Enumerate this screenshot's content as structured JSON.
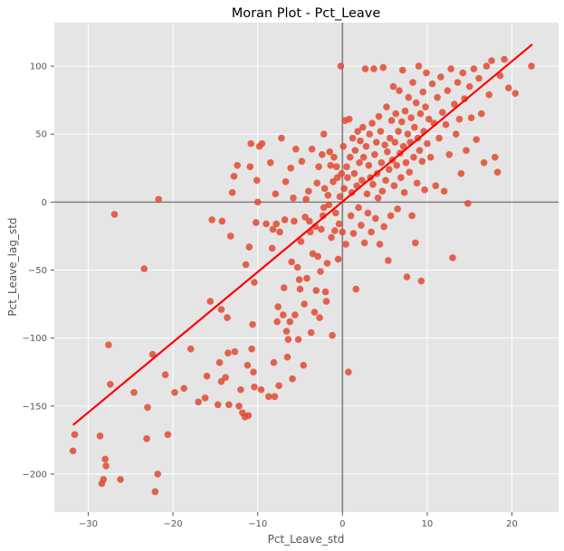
{
  "chart_data": {
    "type": "scatter",
    "title": "Moran Plot - Pct_Leave",
    "xlabel": "Pct_Leave_std",
    "ylabel": "Pct_Leave_lag_std",
    "xlim": [
      -34,
      25.5
    ],
    "ylim": [
      -228,
      132
    ],
    "xticks": [
      -30,
      -20,
      -10,
      0,
      10,
      20
    ],
    "yticks": [
      -200,
      -150,
      -100,
      -50,
      0,
      50,
      100
    ],
    "xtick_labels": [
      "−30",
      "−20",
      "−10",
      "0",
      "10",
      "20"
    ],
    "ytick_labels": [
      "−200",
      "−150",
      "−100",
      "−50",
      "0",
      "50",
      "100"
    ],
    "grid": true,
    "reference_lines": {
      "x": 0,
      "y": 0,
      "color": "#808080"
    },
    "regression_line": {
      "x": [
        -31.8,
        22.4
      ],
      "y": [
        -164,
        116
      ],
      "color": "#ff0000"
    },
    "colors": {
      "points": "#e24a33",
      "background": "#e5e5e5",
      "grid": "#ffffff"
    },
    "points": [
      {
        "x": -31.8,
        "y": -183
      },
      {
        "x": -31.6,
        "y": -171
      },
      {
        "x": -28.6,
        "y": -172
      },
      {
        "x": -28.4,
        "y": -207
      },
      {
        "x": -28.2,
        "y": -204
      },
      {
        "x": -28.0,
        "y": -189
      },
      {
        "x": -27.9,
        "y": -194
      },
      {
        "x": -27.6,
        "y": -105
      },
      {
        "x": -27.4,
        "y": -134
      },
      {
        "x": -26.9,
        "y": -9
      },
      {
        "x": -26.2,
        "y": -204
      },
      {
        "x": -24.6,
        "y": -140
      },
      {
        "x": -23.4,
        "y": -49
      },
      {
        "x": -23.1,
        "y": -174
      },
      {
        "x": -23.0,
        "y": -151
      },
      {
        "x": -22.4,
        "y": -112
      },
      {
        "x": -22.1,
        "y": -213
      },
      {
        "x": -21.8,
        "y": -200
      },
      {
        "x": -21.7,
        "y": 2
      },
      {
        "x": -20.9,
        "y": -127
      },
      {
        "x": -20.6,
        "y": -171
      },
      {
        "x": -19.8,
        "y": -140
      },
      {
        "x": -18.7,
        "y": -137
      },
      {
        "x": -17.9,
        "y": -108
      },
      {
        "x": -17.0,
        "y": -147
      },
      {
        "x": -16.2,
        "y": -144
      },
      {
        "x": -16.0,
        "y": -128
      },
      {
        "x": -15.6,
        "y": -73
      },
      {
        "x": -15.4,
        "y": -13
      },
      {
        "x": -14.7,
        "y": -149
      },
      {
        "x": -14.5,
        "y": -118
      },
      {
        "x": -14.3,
        "y": -132
      },
      {
        "x": -14.3,
        "y": -79
      },
      {
        "x": -14.2,
        "y": -14
      },
      {
        "x": -13.8,
        "y": -129
      },
      {
        "x": -13.6,
        "y": -85
      },
      {
        "x": -13.5,
        "y": -111
      },
      {
        "x": -13.4,
        "y": -149
      },
      {
        "x": -13.2,
        "y": -25
      },
      {
        "x": -13.0,
        "y": 7
      },
      {
        "x": -12.8,
        "y": 19
      },
      {
        "x": -12.7,
        "y": -110
      },
      {
        "x": -12.4,
        "y": 27
      },
      {
        "x": -12.2,
        "y": -150
      },
      {
        "x": -12.0,
        "y": -138
      },
      {
        "x": -11.8,
        "y": -155
      },
      {
        "x": -11.5,
        "y": -158
      },
      {
        "x": -11.4,
        "y": -46
      },
      {
        "x": -11.2,
        "y": -120
      },
      {
        "x": -11.1,
        "y": -157
      },
      {
        "x": -11.0,
        "y": -33
      },
      {
        "x": -10.9,
        "y": 26
      },
      {
        "x": -10.8,
        "y": 43
      },
      {
        "x": -10.7,
        "y": -108
      },
      {
        "x": -10.6,
        "y": -90
      },
      {
        "x": -10.5,
        "y": -125
      },
      {
        "x": -10.4,
        "y": -59
      },
      {
        "x": -10.4,
        "y": -136
      },
      {
        "x": -10.2,
        "y": -15
      },
      {
        "x": -10.1,
        "y": 16
      },
      {
        "x": -10.0,
        "y": 0
      },
      {
        "x": -9.8,
        "y": 41
      },
      {
        "x": -9.6,
        "y": -138
      },
      {
        "x": -9.5,
        "y": 43
      },
      {
        "x": -9.0,
        "y": -16
      },
      {
        "x": -8.7,
        "y": -143
      },
      {
        "x": -8.5,
        "y": 29
      },
      {
        "x": -8.3,
        "y": -34
      },
      {
        "x": -8.2,
        "y": -20
      },
      {
        "x": -8.1,
        "y": -118
      },
      {
        "x": -8.0,
        "y": -143
      },
      {
        "x": -7.9,
        "y": 6
      },
      {
        "x": -7.8,
        "y": -16
      },
      {
        "x": -7.7,
        "y": -88
      },
      {
        "x": -7.6,
        "y": -77
      },
      {
        "x": -7.5,
        "y": -135
      },
      {
        "x": -7.4,
        "y": -22
      },
      {
        "x": -7.2,
        "y": 47
      },
      {
        "x": -7.0,
        "y": -83
      },
      {
        "x": -6.9,
        "y": -63
      },
      {
        "x": -6.8,
        "y": -13
      },
      {
        "x": -6.7,
        "y": 15
      },
      {
        "x": -6.6,
        "y": -95
      },
      {
        "x": -6.5,
        "y": -114
      },
      {
        "x": -6.4,
        "y": -101
      },
      {
        "x": -6.2,
        "y": -88
      },
      {
        "x": -6.1,
        "y": 25
      },
      {
        "x": -6.0,
        "y": -44
      },
      {
        "x": -5.9,
        "y": -130
      },
      {
        "x": -5.8,
        "y": 3
      },
      {
        "x": -5.7,
        "y": -14
      },
      {
        "x": -5.6,
        "y": -83
      },
      {
        "x": -5.5,
        "y": 39
      },
      {
        "x": -5.3,
        "y": -48
      },
      {
        "x": -5.2,
        "y": -101
      },
      {
        "x": -5.1,
        "y": -57
      },
      {
        "x": -5.0,
        "y": -64
      },
      {
        "x": -4.9,
        "y": -29
      },
      {
        "x": -4.8,
        "y": 30
      },
      {
        "x": -4.6,
        "y": -120
      },
      {
        "x": -4.5,
        "y": -75
      },
      {
        "x": -4.4,
        "y": -11
      },
      {
        "x": -4.3,
        "y": 2
      },
      {
        "x": -4.2,
        "y": -56
      },
      {
        "x": -4.0,
        "y": 8
      },
      {
        "x": -3.9,
        "y": -14
      },
      {
        "x": -3.8,
        "y": -22
      },
      {
        "x": -3.7,
        "y": -96
      },
      {
        "x": -3.6,
        "y": 39
      },
      {
        "x": -3.5,
        "y": -38
      },
      {
        "x": -3.3,
        "y": -81
      },
      {
        "x": -3.2,
        "y": -18
      },
      {
        "x": -3.1,
        "y": -65
      },
      {
        "x": -3.0,
        "y": 14
      },
      {
        "x": -2.9,
        "y": -40
      },
      {
        "x": -2.8,
        "y": 26
      },
      {
        "x": -2.7,
        "y": -85
      },
      {
        "x": -2.6,
        "y": -51
      },
      {
        "x": -2.5,
        "y": -20
      },
      {
        "x": -2.4,
        "y": 35
      },
      {
        "x": -2.3,
        "y": -10
      },
      {
        "x": -2.2,
        "y": 50
      },
      {
        "x": -2.2,
        "y": -4
      },
      {
        "x": -2.1,
        "y": 10
      },
      {
        "x": -2.0,
        "y": -66
      },
      {
        "x": -1.9,
        "y": -73
      },
      {
        "x": -1.8,
        "y": -45
      },
      {
        "x": -1.7,
        "y": 5
      },
      {
        "x": -1.6,
        "y": -2
      },
      {
        "x": -1.5,
        "y": 37
      },
      {
        "x": -1.4,
        "y": 27
      },
      {
        "x": -1.3,
        "y": -26
      },
      {
        "x": -1.2,
        "y": -98
      },
      {
        "x": -1.1,
        "y": 15
      },
      {
        "x": -1.0,
        "y": 33
      },
      {
        "x": -0.9,
        "y": -21
      },
      {
        "x": -0.8,
        "y": -8
      },
      {
        "x": -0.7,
        "y": 26
      },
      {
        "x": -0.6,
        "y": 18
      },
      {
        "x": -0.5,
        "y": -42
      },
      {
        "x": -0.4,
        "y": -16
      },
      {
        "x": -0.3,
        "y": 4
      },
      {
        "x": -0.2,
        "y": 100
      },
      {
        "x": -0.1,
        "y": 21
      },
      {
        "x": 0.0,
        "y": -22
      },
      {
        "x": 0.1,
        "y": 41
      },
      {
        "x": 0.2,
        "y": 10
      },
      {
        "x": 0.3,
        "y": 60
      },
      {
        "x": 0.4,
        "y": -31
      },
      {
        "x": 0.5,
        "y": 26
      },
      {
        "x": 0.6,
        "y": 18
      },
      {
        "x": 0.7,
        "y": -125
      },
      {
        "x": 0.8,
        "y": 61
      },
      {
        "x": 0.9,
        "y": 33
      },
      {
        "x": 1.0,
        "y": -10
      },
      {
        "x": 1.1,
        "y": 7
      },
      {
        "x": 1.2,
        "y": 47
      },
      {
        "x": 1.3,
        "y": -23
      },
      {
        "x": 1.4,
        "y": 21
      },
      {
        "x": 1.5,
        "y": 38
      },
      {
        "x": 1.6,
        "y": -64
      },
      {
        "x": 1.7,
        "y": 12
      },
      {
        "x": 1.8,
        "y": 52
      },
      {
        "x": 1.9,
        "y": -4
      },
      {
        "x": 2.0,
        "y": 29
      },
      {
        "x": 2.1,
        "y": 45
      },
      {
        "x": 2.2,
        "y": -17
      },
      {
        "x": 2.3,
        "y": 16
      },
      {
        "x": 2.4,
        "y": 55
      },
      {
        "x": 2.5,
        "y": 33
      },
      {
        "x": 2.6,
        "y": -30
      },
      {
        "x": 2.7,
        "y": 98
      },
      {
        "x": 2.8,
        "y": 41
      },
      {
        "x": 2.9,
        "y": 6
      },
      {
        "x": 3.0,
        "y": -8
      },
      {
        "x": 3.1,
        "y": 27
      },
      {
        "x": 3.2,
        "y": 50
      },
      {
        "x": 3.3,
        "y": 18
      },
      {
        "x": 3.4,
        "y": -22
      },
      {
        "x": 3.5,
        "y": 58
      },
      {
        "x": 3.6,
        "y": 13
      },
      {
        "x": 3.7,
        "y": 98
      },
      {
        "x": 3.8,
        "y": 35
      },
      {
        "x": 3.9,
        "y": -12
      },
      {
        "x": 4.0,
        "y": 44
      },
      {
        "x": 4.1,
        "y": 21
      },
      {
        "x": 4.2,
        "y": 3
      },
      {
        "x": 4.3,
        "y": 63
      },
      {
        "x": 4.4,
        "y": -31
      },
      {
        "x": 4.5,
        "y": 52
      },
      {
        "x": 4.6,
        "y": 29
      },
      {
        "x": 4.7,
        "y": 8
      },
      {
        "x": 4.8,
        "y": 99
      },
      {
        "x": 4.9,
        "y": -18
      },
      {
        "x": 5.0,
        "y": 42
      },
      {
        "x": 5.1,
        "y": 16
      },
      {
        "x": 5.2,
        "y": 70
      },
      {
        "x": 5.3,
        "y": 37
      },
      {
        "x": 5.4,
        "y": -43
      },
      {
        "x": 5.5,
        "y": 24
      },
      {
        "x": 5.6,
        "y": 47
      },
      {
        "x": 5.7,
        "y": -10
      },
      {
        "x": 5.8,
        "y": 60
      },
      {
        "x": 5.9,
        "y": 31
      },
      {
        "x": 6.0,
        "y": 85
      },
      {
        "x": 6.1,
        "y": 12
      },
      {
        "x": 6.2,
        "y": 44
      },
      {
        "x": 6.3,
        "y": 65
      },
      {
        "x": 6.4,
        "y": 27
      },
      {
        "x": 6.5,
        "y": -5
      },
      {
        "x": 6.6,
        "y": 52
      },
      {
        "x": 6.7,
        "y": 82
      },
      {
        "x": 6.8,
        "y": 36
      },
      {
        "x": 6.9,
        "y": 18
      },
      {
        "x": 7.0,
        "y": 59
      },
      {
        "x": 7.1,
        "y": 97
      },
      {
        "x": 7.2,
        "y": 41
      },
      {
        "x": 7.3,
        "y": 7
      },
      {
        "x": 7.4,
        "y": 67
      },
      {
        "x": 7.5,
        "y": 29
      },
      {
        "x": 7.6,
        "y": -55
      },
      {
        "x": 7.7,
        "y": 50
      },
      {
        "x": 7.8,
        "y": 77
      },
      {
        "x": 7.9,
        "y": 22
      },
      {
        "x": 8.0,
        "y": 44
      },
      {
        "x": 8.1,
        "y": 62
      },
      {
        "x": 8.2,
        "y": -10
      },
      {
        "x": 8.3,
        "y": 88
      },
      {
        "x": 8.4,
        "y": 33
      },
      {
        "x": 8.5,
        "y": 55
      },
      {
        "x": 8.6,
        "y": -30
      },
      {
        "x": 8.7,
        "y": 73
      },
      {
        "x": 8.8,
        "y": 14
      },
      {
        "x": 8.9,
        "y": 47
      },
      {
        "x": 9.0,
        "y": 100
      },
      {
        "x": 9.1,
        "y": 38
      },
      {
        "x": 9.2,
        "y": 65
      },
      {
        "x": 9.3,
        "y": -58
      },
      {
        "x": 9.4,
        "y": 30
      },
      {
        "x": 9.5,
        "y": 81
      },
      {
        "x": 9.6,
        "y": 52
      },
      {
        "x": 9.7,
        "y": 9
      },
      {
        "x": 9.8,
        "y": 70
      },
      {
        "x": 9.9,
        "y": 95
      },
      {
        "x": 10.0,
        "y": 43
      },
      {
        "x": 10.2,
        "y": 61
      },
      {
        "x": 10.4,
        "y": 33
      },
      {
        "x": 10.6,
        "y": 87
      },
      {
        "x": 10.8,
        "y": 58
      },
      {
        "x": 11.0,
        "y": 12
      },
      {
        "x": 11.2,
        "y": 77
      },
      {
        "x": 11.4,
        "y": 47
      },
      {
        "x": 11.6,
        "y": 92
      },
      {
        "x": 11.8,
        "y": 66
      },
      {
        "x": 12.0,
        "y": 8
      },
      {
        "x": 12.2,
        "y": 57
      },
      {
        "x": 12.4,
        "y": 82
      },
      {
        "x": 12.6,
        "y": 35
      },
      {
        "x": 12.8,
        "y": 98
      },
      {
        "x": 13.0,
        "y": -41
      },
      {
        "x": 13.2,
        "y": 72
      },
      {
        "x": 13.4,
        "y": 50
      },
      {
        "x": 13.6,
        "y": 88
      },
      {
        "x": 13.8,
        "y": 61
      },
      {
        "x": 14.0,
        "y": 21
      },
      {
        "x": 14.2,
        "y": 95
      },
      {
        "x": 14.4,
        "y": 76
      },
      {
        "x": 14.6,
        "y": 38
      },
      {
        "x": 14.8,
        "y": -1
      },
      {
        "x": 15.0,
        "y": 85
      },
      {
        "x": 15.2,
        "y": 62
      },
      {
        "x": 15.5,
        "y": 98
      },
      {
        "x": 15.8,
        "y": 46
      },
      {
        "x": 16.1,
        "y": 91
      },
      {
        "x": 16.4,
        "y": 65
      },
      {
        "x": 16.7,
        "y": 29
      },
      {
        "x": 17.0,
        "y": 100
      },
      {
        "x": 17.3,
        "y": 79
      },
      {
        "x": 17.6,
        "y": 104
      },
      {
        "x": 18.0,
        "y": 33
      },
      {
        "x": 18.3,
        "y": 22
      },
      {
        "x": 18.6,
        "y": 93
      },
      {
        "x": 19.1,
        "y": 105
      },
      {
        "x": 19.6,
        "y": 84
      },
      {
        "x": 20.4,
        "y": 80
      },
      {
        "x": 22.3,
        "y": 100
      }
    ]
  }
}
